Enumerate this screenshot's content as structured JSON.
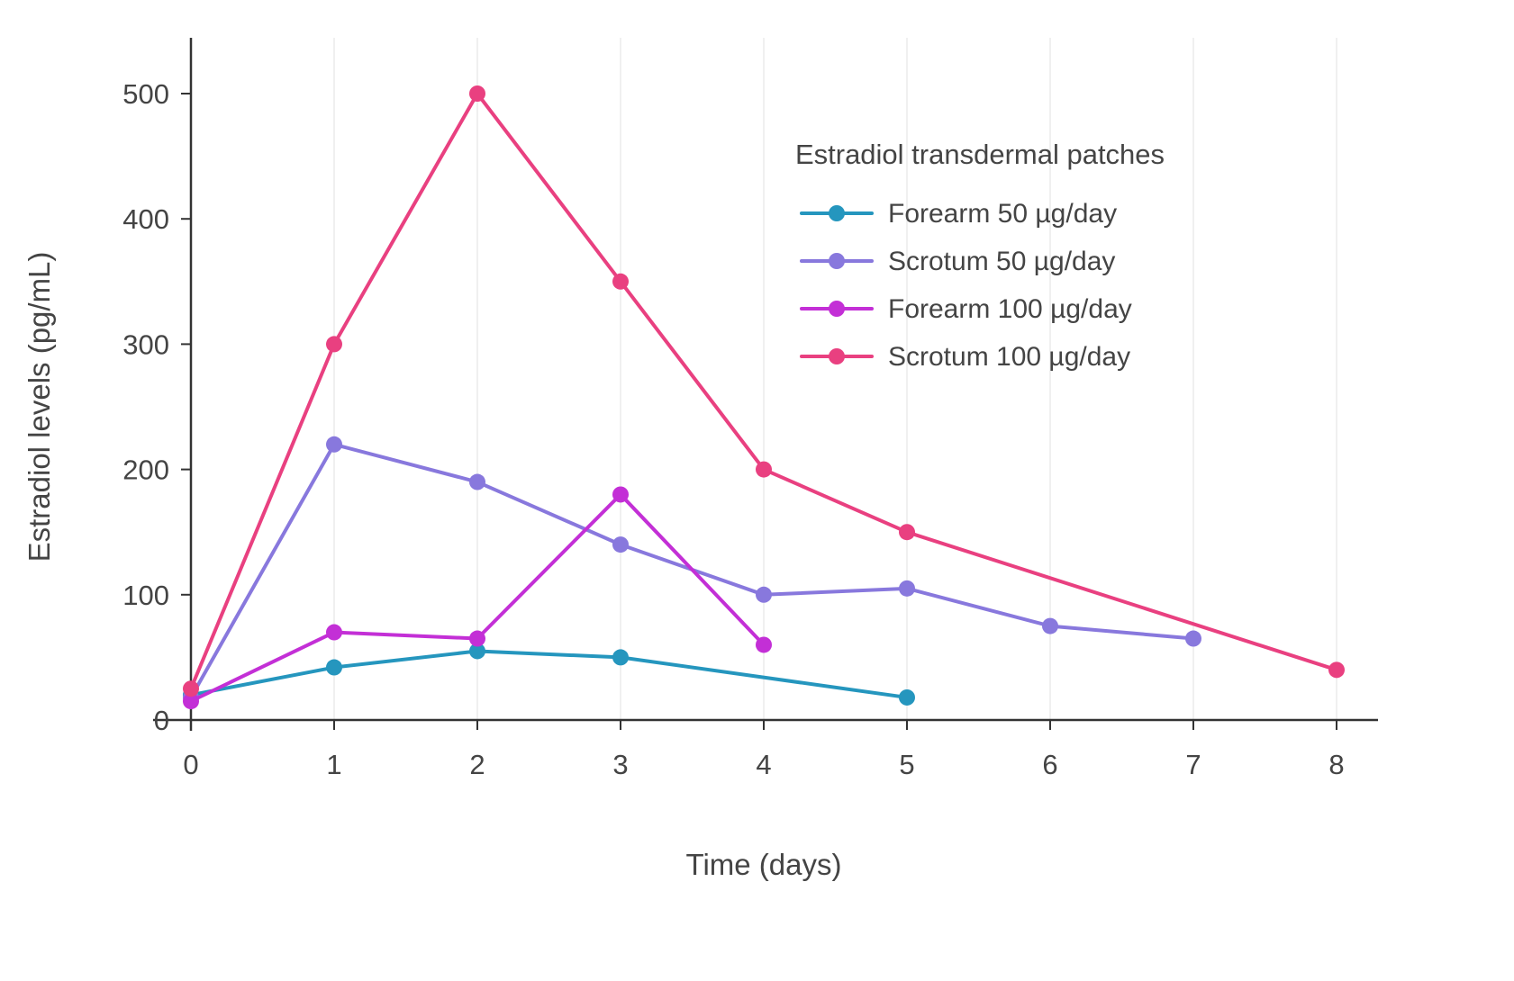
{
  "chart_data": {
    "type": "line",
    "title": "",
    "legend_title": "Estradiol transdermal patches",
    "xlabel": "Time (days)",
    "ylabel": "Estradiol levels (pg/mL)",
    "x_ticks": [
      0,
      1,
      2,
      3,
      4,
      5,
      6,
      7,
      8
    ],
    "y_ticks": [
      0,
      100,
      200,
      300,
      400,
      500
    ],
    "xlim": [
      0,
      8
    ],
    "ylim": [
      0,
      540
    ],
    "grid": "faint-vertical",
    "legend_position": "top-right-inside",
    "axis_color": "#333333",
    "text_color": "#444444",
    "grid_color": "#ececec",
    "series": [
      {
        "name": "Forearm 50 µg/day",
        "color": "#2596be",
        "x": [
          0,
          1,
          2,
          3,
          5
        ],
        "values": [
          20,
          42,
          55,
          50,
          18
        ]
      },
      {
        "name": "Scrotum 50 µg/day",
        "color": "#8878dd",
        "x": [
          0,
          1,
          2,
          3,
          4,
          5,
          6,
          7
        ],
        "values": [
          18,
          220,
          190,
          140,
          100,
          105,
          75,
          65
        ]
      },
      {
        "name": "Forearm 100 µg/day",
        "color": "#c32fd6",
        "x": [
          0,
          1,
          2,
          3,
          4
        ],
        "values": [
          15,
          70,
          65,
          180,
          60
        ]
      },
      {
        "name": "Scrotum 100 µg/day",
        "color": "#e94080",
        "x": [
          0,
          1,
          2,
          3,
          4,
          5,
          8
        ],
        "values": [
          25,
          300,
          500,
          350,
          200,
          150,
          40
        ]
      }
    ]
  }
}
